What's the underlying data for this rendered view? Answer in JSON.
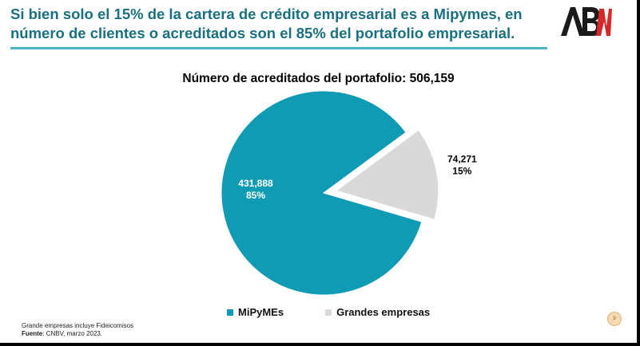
{
  "header": {
    "title": "Si bien solo el 15% de la cartera de crédito empresarial es a Mipymes, en número de clientes o acreditados son el 85% del portafolio empresarial.",
    "logo_text": "ABM",
    "logo_colors": {
      "dark": "#1a1a1a",
      "accent": "#d62828"
    }
  },
  "chart_data": {
    "type": "pie",
    "title": "Número de acreditados del portafolio: 506,159",
    "slices": [
      {
        "name": "MiPyMEs",
        "value": 431888,
        "value_label": "431,888",
        "percent_label": "85%",
        "color": "#0f9bb4",
        "label_color": "#ffffff",
        "exploded": false
      },
      {
        "name": "Grandes empresas",
        "value": 74271,
        "value_label": "74,271",
        "percent_label": "15%",
        "color": "#d9d9d9",
        "label_color": "#000000",
        "exploded": true
      }
    ],
    "legend_position": "bottom"
  },
  "footer": {
    "note": "Grande empresas incluye Fideicomisos",
    "source_label": "Fuente",
    "source_text": ": CNBV, marzo 2023.",
    "page_number": "9"
  }
}
